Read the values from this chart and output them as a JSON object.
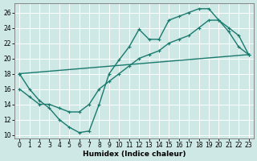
{
  "bg_color": "#cde8e5",
  "grid_color": "#ffffff",
  "line_color": "#1a7a6e",
  "xlim": [
    -0.5,
    23.5
  ],
  "ylim": [
    9.5,
    27.2
  ],
  "xticks": [
    0,
    1,
    2,
    3,
    4,
    5,
    6,
    7,
    8,
    9,
    10,
    11,
    12,
    13,
    14,
    15,
    16,
    17,
    18,
    19,
    20,
    21,
    22,
    23
  ],
  "yticks": [
    10,
    12,
    14,
    16,
    18,
    20,
    22,
    24,
    26
  ],
  "xlabel": "Humidex (Indice chaleur)",
  "curve1_x": [
    0,
    1,
    2,
    3,
    4,
    5,
    6,
    7,
    8,
    9,
    10,
    11,
    12,
    13,
    14,
    15,
    16,
    17,
    18,
    19,
    20,
    21,
    22,
    23
  ],
  "curve1_y": [
    18,
    16,
    14.5,
    13.5,
    12,
    11,
    10.3,
    10.5,
    14,
    18,
    19.8,
    21.5,
    23.8,
    22.5,
    22.5,
    25,
    25.5,
    26,
    26.5,
    26.5,
    25,
    23.5,
    21.5,
    20.5
  ],
  "curve2_x": [
    0,
    1,
    2,
    3,
    4,
    5,
    6,
    7,
    8,
    9,
    10,
    11,
    12,
    13,
    14,
    15,
    16,
    17,
    18,
    19,
    20,
    21,
    22,
    23
  ],
  "curve2_y": [
    16,
    15,
    14,
    14,
    13.5,
    13,
    13,
    14,
    16,
    17,
    18,
    19,
    20,
    20.5,
    21,
    22,
    22.5,
    23,
    24,
    25,
    25,
    24,
    23,
    20.5
  ],
  "curve3_x": [
    0,
    23
  ],
  "curve3_y": [
    18,
    20.5
  ],
  "linewidth": 1.0,
  "markersize": 2.8
}
